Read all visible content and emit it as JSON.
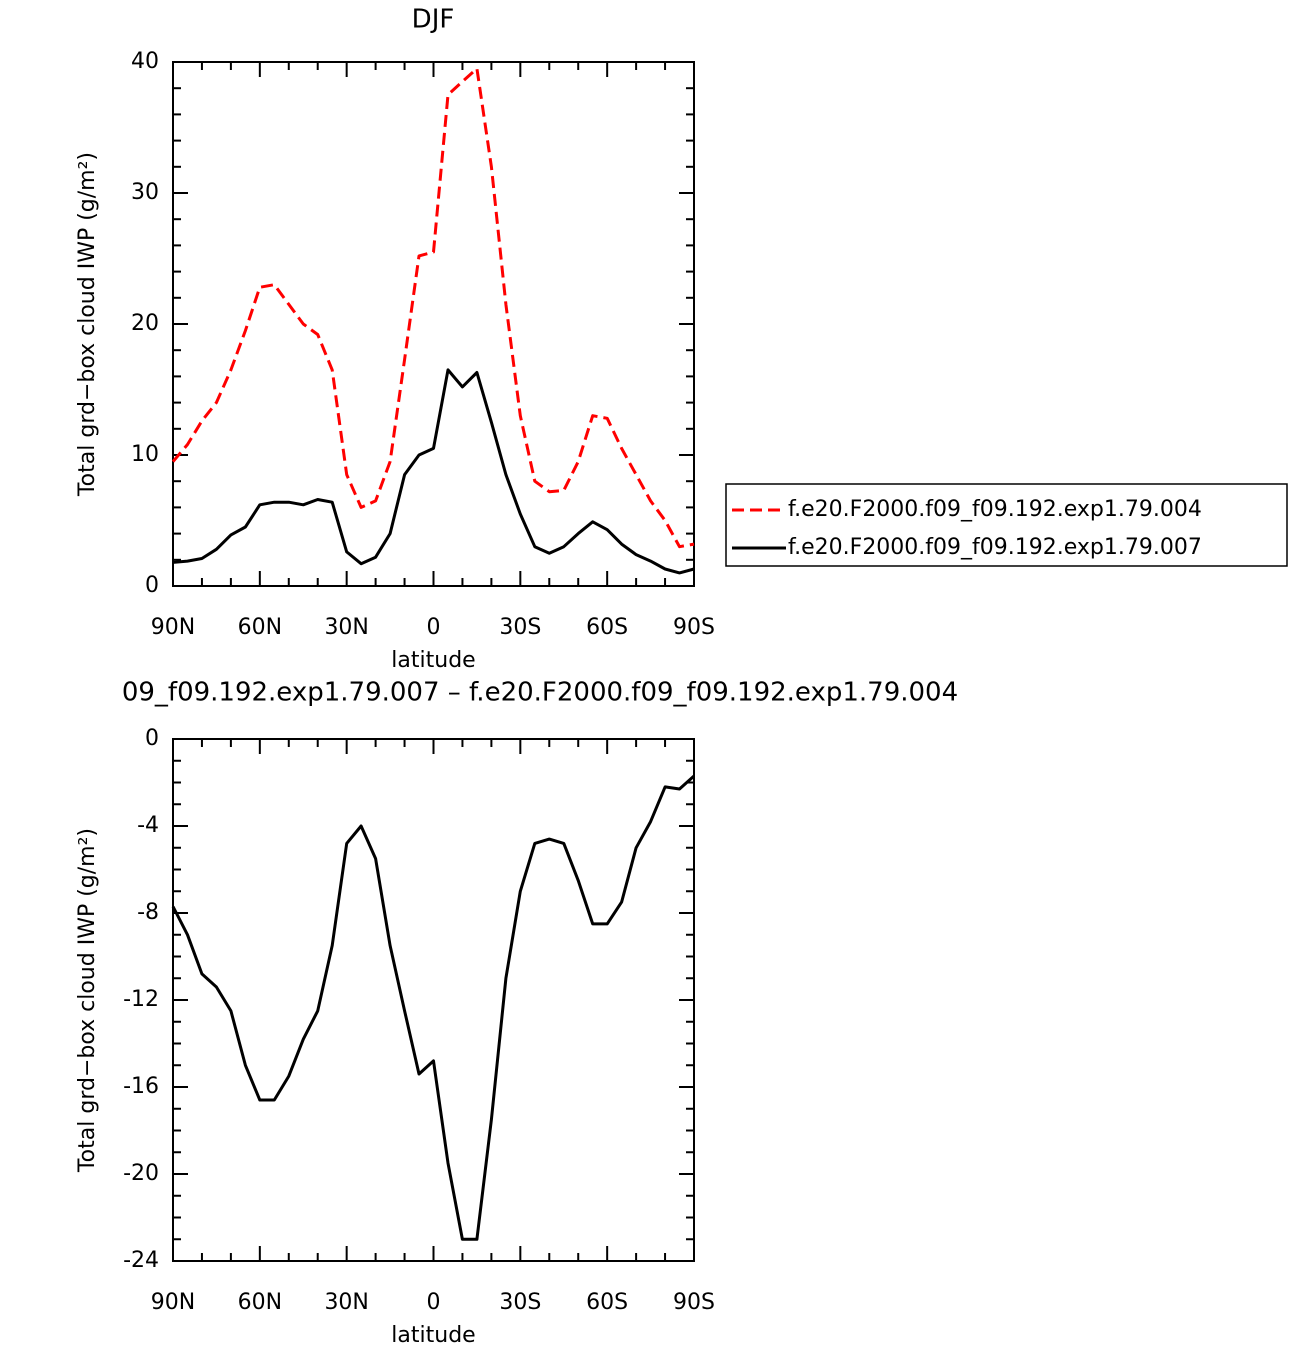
{
  "chart_data": [
    {
      "type": "line",
      "title": "DJF",
      "xlabel": "latitude",
      "ylabel": "Total grd−box cloud IWP (g/m²)",
      "x": [
        90,
        85,
        80,
        75,
        70,
        65,
        60,
        55,
        50,
        45,
        40,
        35,
        30,
        25,
        20,
        15,
        10,
        5,
        0,
        -5,
        -10,
        -15,
        -20,
        -25,
        -30,
        -35,
        -40,
        -45,
        -50,
        -55,
        -60,
        -65,
        -70,
        -75,
        -80,
        -85,
        -90
      ],
      "series": [
        {
          "name": "f.e20.F2000.f09_f09.192.exp1.79.004",
          "color": "#ff0000",
          "dash": true,
          "values": [
            9.5,
            10.8,
            12.6,
            14.0,
            16.5,
            19.5,
            22.8,
            23.0,
            21.5,
            20.0,
            19.2,
            16.5,
            8.5,
            6.0,
            6.5,
            9.5,
            17.3,
            25.2,
            25.5,
            37.5,
            38.5,
            39.5,
            32.0,
            21.5,
            13.0,
            8.0,
            7.2,
            7.3,
            9.5,
            13.0,
            12.8,
            10.5,
            8.5,
            6.5,
            5.0,
            3.0,
            3.2
          ]
        },
        {
          "name": "f.e20.F2000.f09_f09.192.exp1.79.007",
          "color": "#000000",
          "dash": false,
          "values": [
            1.8,
            1.9,
            2.1,
            2.8,
            3.9,
            4.5,
            6.2,
            6.4,
            6.4,
            6.2,
            6.6,
            6.4,
            2.6,
            1.7,
            2.2,
            4.0,
            8.5,
            10.0,
            10.5,
            16.5,
            15.2,
            16.3,
            12.5,
            8.5,
            5.5,
            3.0,
            2.5,
            3.0,
            4.0,
            4.9,
            4.3,
            3.2,
            2.4,
            1.9,
            1.3,
            1.0,
            1.3
          ]
        }
      ],
      "xlim": [
        90,
        -90
      ],
      "xticks": [
        {
          "value": 90,
          "label": "90N"
        },
        {
          "value": 60,
          "label": "60N"
        },
        {
          "value": 30,
          "label": "30N"
        },
        0,
        {
          "value": -30,
          "label": "30S"
        },
        {
          "value": -60,
          "label": "60S"
        },
        {
          "value": -90,
          "label": "90S"
        }
      ],
      "ylim": [
        0,
        40
      ],
      "yticks": [
        0,
        10,
        20,
        30,
        40
      ],
      "legend": "right"
    },
    {
      "type": "line",
      "title": "09_f09.192.exp1.79.007 – f.e20.F2000.f09_f09.192.exp1.79.004",
      "xlabel": "latitude",
      "ylabel": "Total grd−box cloud IWP (g/m²)",
      "x": [
        90,
        85,
        80,
        75,
        70,
        65,
        60,
        55,
        50,
        45,
        40,
        35,
        30,
        25,
        20,
        15,
        10,
        5,
        0,
        -5,
        -10,
        -15,
        -20,
        -25,
        -30,
        -35,
        -40,
        -45,
        -50,
        -55,
        -60,
        -65,
        -70,
        -75,
        -80,
        -85,
        -90
      ],
      "series": [
        {
          "color": "#000000",
          "dash": false,
          "values": [
            -7.7,
            -9.0,
            -10.8,
            -11.4,
            -12.5,
            -15.0,
            -16.6,
            -16.6,
            -15.5,
            -13.8,
            -12.5,
            -9.5,
            -4.8,
            -4.0,
            -5.5,
            -9.5,
            -12.5,
            -15.4,
            -14.8,
            -19.5,
            -23.0,
            -23.0,
            -17.5,
            -11.0,
            -7.0,
            -4.8,
            -4.6,
            -4.8,
            -6.5,
            -8.5,
            -8.5,
            -7.5,
            -5.0,
            -3.8,
            -2.2,
            -2.3,
            -1.7
          ]
        }
      ],
      "xlim": [
        90,
        -90
      ],
      "xticks": [
        {
          "value": 90,
          "label": "90N"
        },
        {
          "value": 60,
          "label": "60N"
        },
        {
          "value": 30,
          "label": "30N"
        },
        0,
        {
          "value": -30,
          "label": "30S"
        },
        {
          "value": -60,
          "label": "60S"
        },
        {
          "value": -90,
          "label": "90S"
        }
      ],
      "ylim": [
        -24,
        0
      ],
      "yticks": [
        -24,
        -20,
        -16,
        -12,
        -8,
        -4,
        0
      ]
    }
  ]
}
